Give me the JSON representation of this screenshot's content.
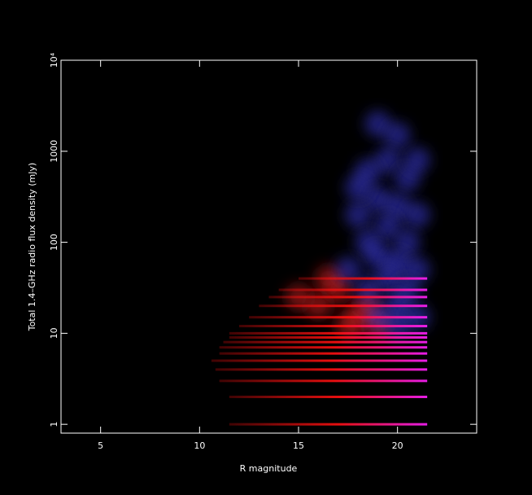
{
  "chart_data": {
    "type": "density",
    "x_label": "R magnitude",
    "y_label": "Total 1.4–GHz radio flux density (mJy)",
    "xlim": [
      3,
      24
    ],
    "ylim": [
      0.8,
      10000
    ],
    "ylog": true,
    "xticks": [
      5,
      10,
      15,
      20
    ],
    "yticks": [
      1,
      10,
      100,
      1000,
      {
        "value": 10000,
        "label": "10⁴"
      }
    ],
    "streaks": {
      "colors": [
        "#ff1010",
        "#ff20ff"
      ],
      "y": [
        1,
        2,
        3,
        4,
        5,
        6,
        7,
        8,
        9,
        10,
        12,
        15,
        20,
        25,
        30,
        40
      ],
      "x_start": [
        11.5,
        11.5,
        11,
        10.8,
        10.6,
        11,
        11,
        11.2,
        11.5,
        11.5,
        12,
        12.5,
        13,
        13.5,
        14,
        15
      ],
      "x_end": [
        21.5,
        21.5,
        21.5,
        21.5,
        21.5,
        21.5,
        21.5,
        21.5,
        21.5,
        21.5,
        21.5,
        21.5,
        21.5,
        21.5,
        21.5,
        21.5
      ]
    },
    "series": [
      {
        "color": "#ff2020",
        "x": [
          17,
          16,
          18,
          17.5,
          15,
          19,
          16.5,
          18.5
        ],
        "values": [
          30,
          20,
          15,
          12,
          25,
          12,
          40,
          20
        ]
      },
      {
        "color": "#4848ff",
        "x": [
          19,
          20,
          19.5,
          18.5,
          20.5,
          19,
          20,
          21,
          18,
          19.5,
          20.5,
          18.5,
          19,
          20,
          21,
          19.5,
          20.5,
          18.5,
          20,
          19,
          21,
          20,
          17.5,
          18,
          21
        ],
        "values": [
          2000,
          1500,
          800,
          600,
          500,
          300,
          250,
          200,
          200,
          150,
          100,
          100,
          70,
          60,
          50,
          40,
          30,
          30,
          20,
          15,
          15,
          12,
          50,
          400,
          800
        ]
      }
    ]
  }
}
